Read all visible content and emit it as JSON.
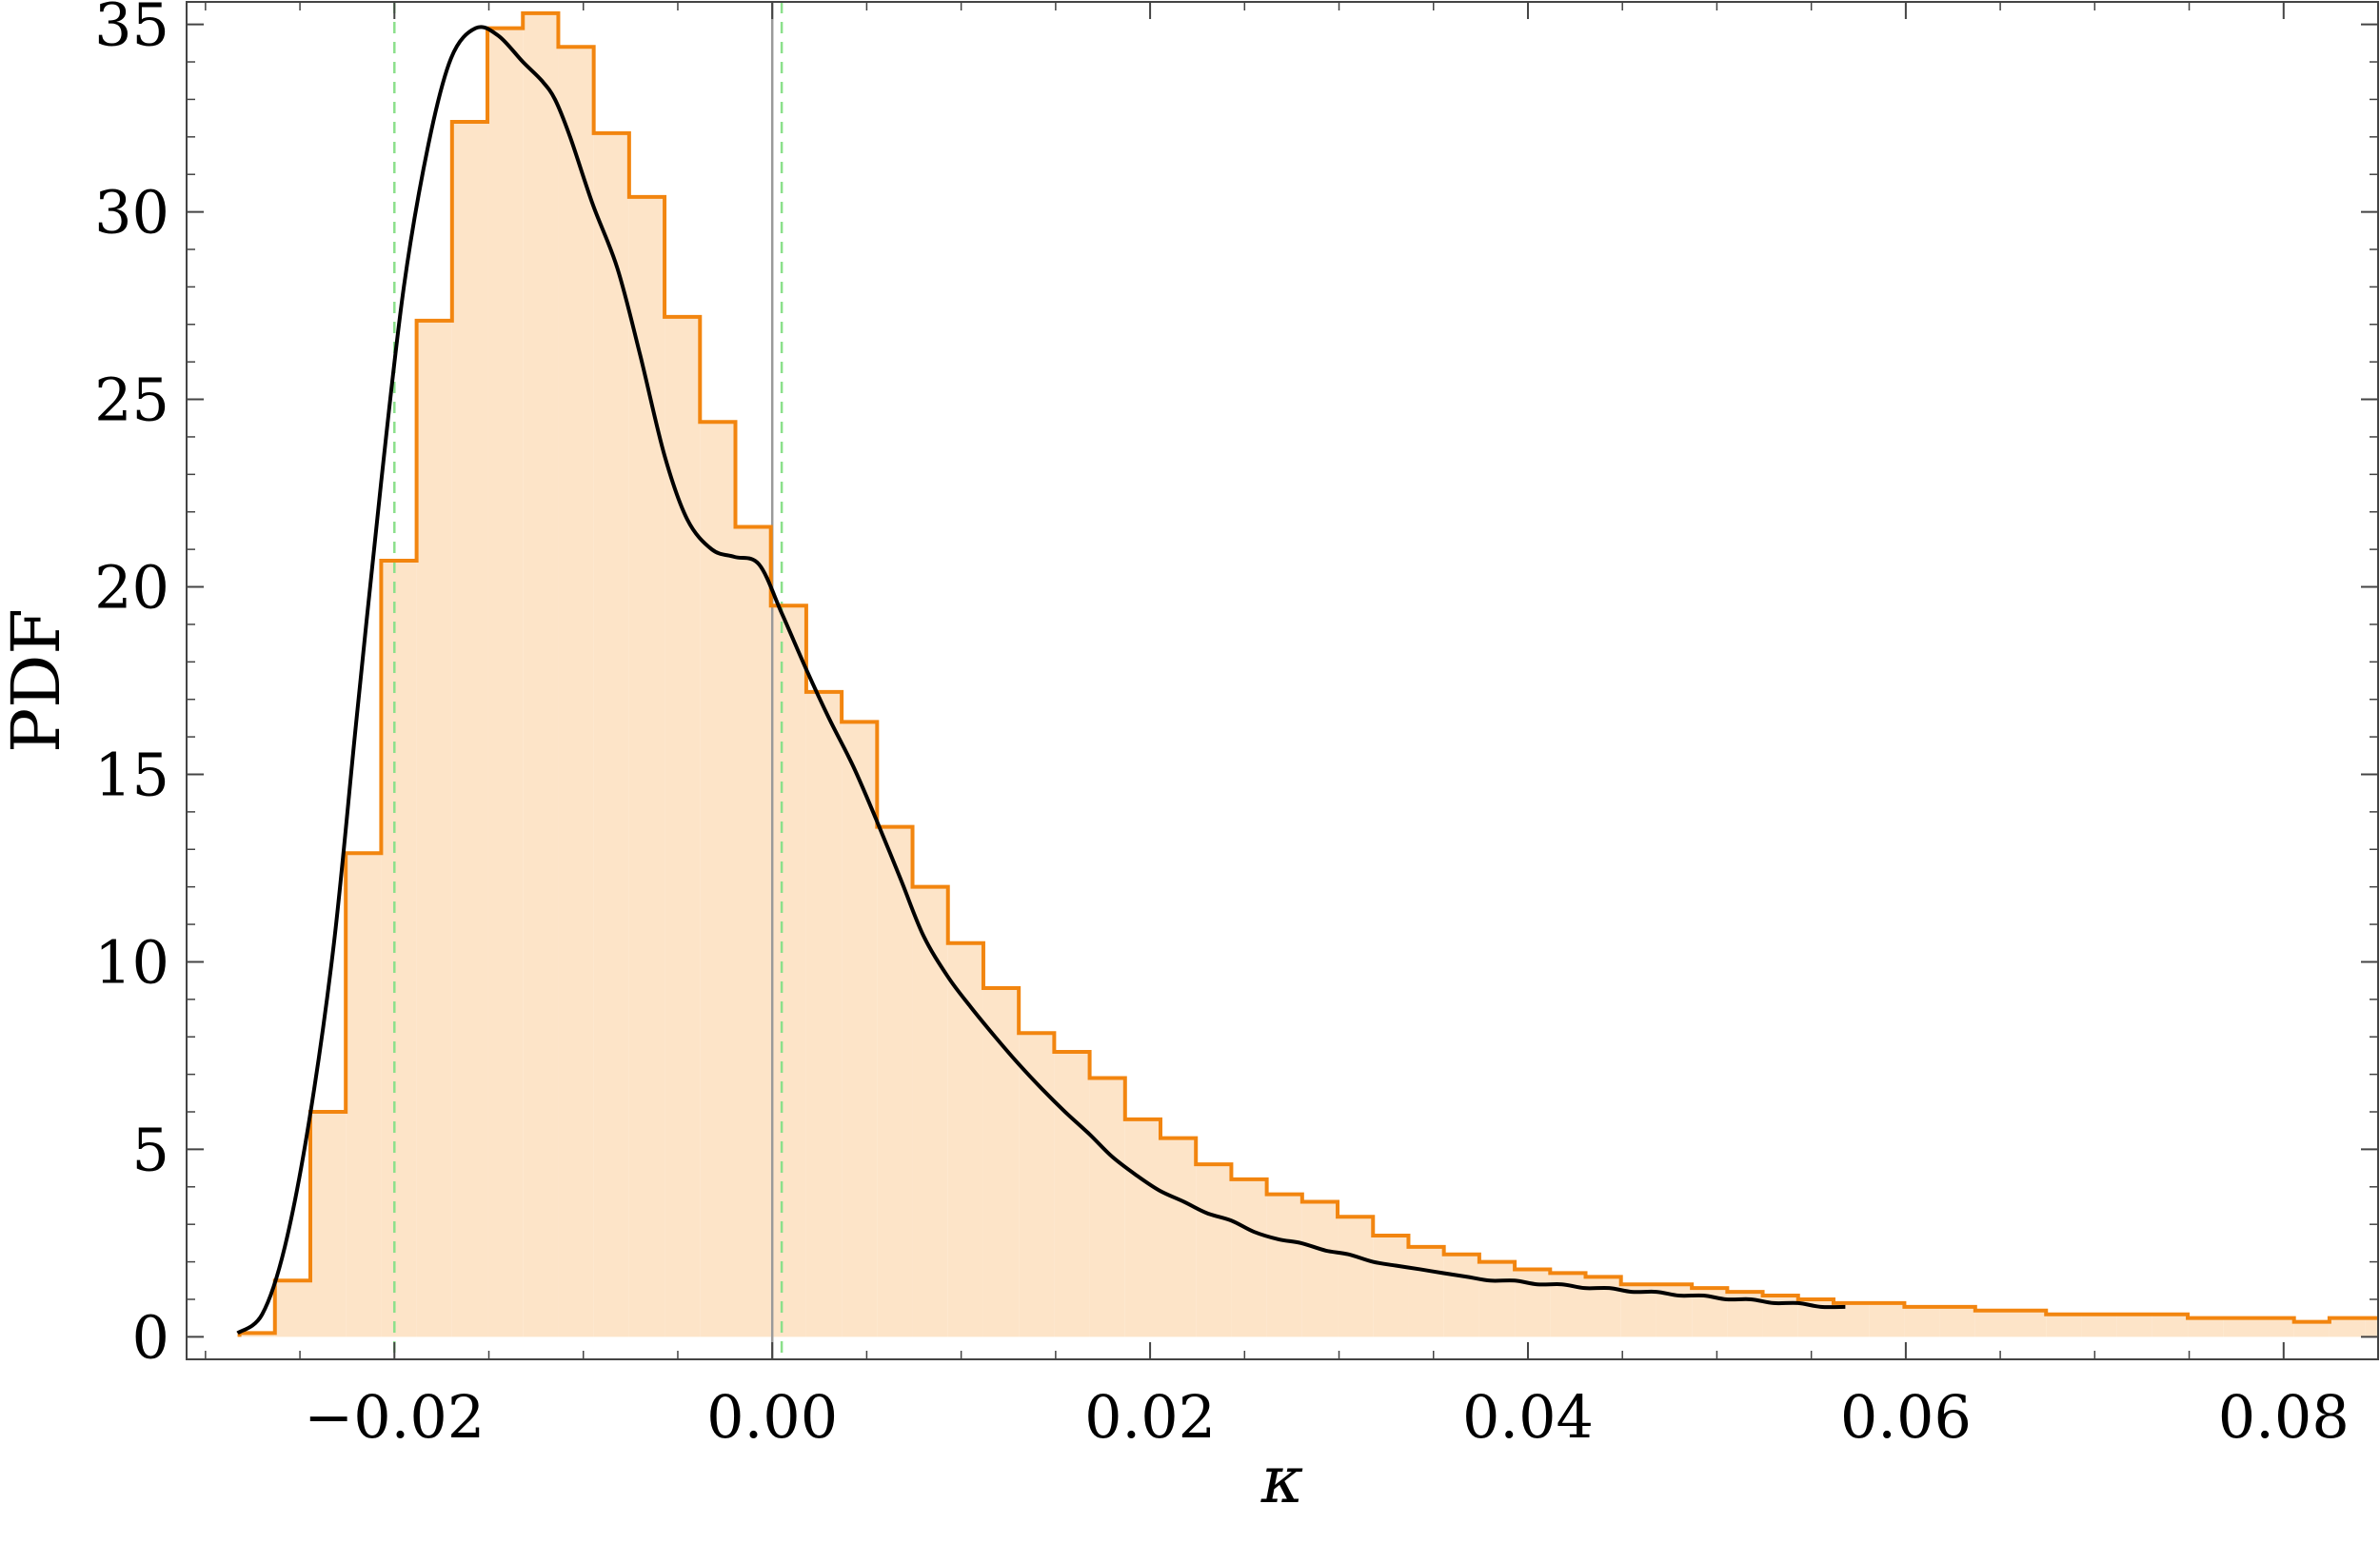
{
  "chart_data": {
    "type": "histogram",
    "title": "",
    "xlabel": "κ",
    "ylabel": "PDF",
    "xlim": [
      -0.031,
      0.085
    ],
    "ylim": [
      -0.6,
      35.6
    ],
    "x_ticks": [
      {
        "value": -0.02,
        "label": "−0.02"
      },
      {
        "value": 0.0,
        "label": "0.00"
      },
      {
        "value": 0.02,
        "label": "0.02"
      },
      {
        "value": 0.04,
        "label": "0.04"
      },
      {
        "value": 0.06,
        "label": "0.06"
      },
      {
        "value": 0.08,
        "label": "0.08"
      }
    ],
    "y_ticks": [
      {
        "value": 0,
        "label": "0"
      },
      {
        "value": 5,
        "label": "5"
      },
      {
        "value": 10,
        "label": "10"
      },
      {
        "value": 15,
        "label": "15"
      },
      {
        "value": 20,
        "label": "20"
      },
      {
        "value": 25,
        "label": "25"
      },
      {
        "value": 30,
        "label": "30"
      },
      {
        "value": 35,
        "label": "35"
      }
    ],
    "histogram": {
      "bin_width": 0.001875,
      "bin_start": -0.0282,
      "heights": [
        0.1,
        1.5,
        6.0,
        12.9,
        20.7,
        27.1,
        32.4,
        34.9,
        35.3,
        34.4,
        32.1,
        30.4,
        27.2,
        24.4,
        21.6,
        19.5,
        17.2,
        16.4,
        13.6,
        12.0,
        10.5,
        9.3,
        8.1,
        7.6,
        6.9,
        5.8,
        5.3,
        4.6,
        4.2,
        3.8,
        3.6,
        3.2,
        2.7,
        2.4,
        2.2,
        2.0,
        1.8,
        1.7,
        1.6,
        1.4,
        1.4,
        1.3,
        1.2,
        1.1,
        1.0,
        0.9,
        0.9,
        0.8,
        0.8,
        0.7,
        0.7,
        0.6,
        0.6,
        0.6,
        0.6,
        0.5,
        0.5,
        0.5,
        0.4,
        0.5,
        0.5,
        0.4
      ],
      "stroke_color": "#f2850f",
      "fill_color": "#fde4c8"
    },
    "curve": {
      "color": "#000000",
      "x": [
        -0.0283,
        -0.027,
        -0.0258,
        -0.0245,
        -0.0232,
        -0.022,
        -0.0207,
        -0.0195,
        -0.0182,
        -0.017,
        -0.0157,
        -0.0145,
        -0.0132,
        -0.0122,
        -0.0115,
        -0.0107,
        -0.0095,
        -0.0082,
        -0.007,
        -0.0057,
        -0.0045,
        -0.0032,
        -0.002,
        -0.0007,
        0.0005,
        0.0018,
        0.003,
        0.0043,
        0.0055,
        0.0068,
        0.008,
        0.0093,
        0.0105,
        0.0118,
        0.013,
        0.0143,
        0.0155,
        0.0168,
        0.018,
        0.0193,
        0.0205,
        0.0218,
        0.023,
        0.0243,
        0.0255,
        0.0268,
        0.028,
        0.0293,
        0.0305,
        0.0318,
        0.033,
        0.0343,
        0.0355,
        0.0368,
        0.038,
        0.0393,
        0.0405,
        0.0418,
        0.043,
        0.0443,
        0.0455,
        0.0468,
        0.048,
        0.0493,
        0.0505,
        0.0518,
        0.053,
        0.0543,
        0.0555,
        0.0568
      ],
      "y": [
        0.1,
        0.6,
        2.4,
        5.8,
        10.5,
        16.5,
        22.8,
        28.0,
        31.8,
        34.1,
        34.9,
        34.7,
        34.0,
        33.5,
        33.0,
        32.0,
        30.2,
        28.5,
        26.2,
        23.5,
        21.8,
        21.0,
        20.8,
        20.6,
        19.3,
        17.8,
        16.5,
        15.2,
        13.8,
        12.2,
        10.7,
        9.6,
        8.8,
        8.0,
        7.3,
        6.6,
        6.0,
        5.4,
        4.8,
        4.3,
        3.9,
        3.6,
        3.3,
        3.1,
        2.8,
        2.6,
        2.5,
        2.3,
        2.2,
        2.0,
        1.9,
        1.8,
        1.7,
        1.6,
        1.5,
        1.5,
        1.4,
        1.4,
        1.3,
        1.3,
        1.2,
        1.2,
        1.1,
        1.1,
        1.0,
        1.0,
        0.9,
        0.9,
        0.8,
        0.8
      ]
    },
    "vertical_lines": [
      {
        "x": -0.02,
        "style": "dashed",
        "color": "#8be08b"
      },
      {
        "x": 0.0005,
        "style": "dashed",
        "color": "#8be08b"
      },
      {
        "x": 0.0,
        "style": "solid",
        "color": "#9a9a9a"
      }
    ],
    "grid": false,
    "legend": "none"
  }
}
